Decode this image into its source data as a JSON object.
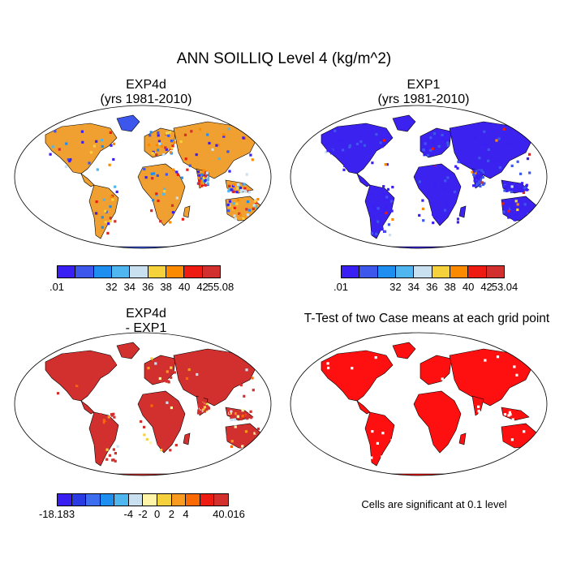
{
  "title": "ANN SOILLIQ Level 4 (kg/m^2)",
  "panels": [
    {
      "id": "p1",
      "title_line1": "EXP4d",
      "title_line2": "(yrs 1981-2010)",
      "fill": "exp4d",
      "ocean": "#ffffff"
    },
    {
      "id": "p2",
      "title_line1": "EXP1",
      "title_line2": "(yrs 1981-2010)",
      "fill": "exp1",
      "ocean": "#ffffff"
    },
    {
      "id": "p3",
      "title_line1": "EXP4d",
      "title_line2": "- EXP1",
      "fill": "diff",
      "ocean": "#ffffff"
    },
    {
      "id": "p4",
      "title_line1": "T-Test of two Case means at each grid point",
      "title_line2": "",
      "fill": "ttest",
      "ocean": "#ffffff"
    }
  ],
  "colorbars": [
    {
      "id": "cb1",
      "colors": [
        "#3a1ff5",
        "#3d57ec",
        "#1e8ff0",
        "#4fb6ef",
        "#c8e0f0",
        "#f5d23c",
        "#fb8a00",
        "#ee1b12",
        "#d2302e"
      ],
      "labels": [
        ".01",
        "32",
        "34",
        "36",
        "38",
        "40",
        "42",
        "55.08"
      ]
    },
    {
      "id": "cb2",
      "colors": [
        "#3a1ff5",
        "#3d57ec",
        "#1e8ff0",
        "#4fb6ef",
        "#c8e0f0",
        "#f5d23c",
        "#fb8a00",
        "#ee1b12",
        "#d2302e"
      ],
      "labels": [
        ".01",
        "32",
        "34",
        "36",
        "38",
        "40",
        "42",
        "53.04"
      ]
    },
    {
      "id": "cb3",
      "colors": [
        "#3a1ff5",
        "#2a3be4",
        "#3d6ef0",
        "#1e8ff0",
        "#4fb6ef",
        "#c8e0f0",
        "#fff4a8",
        "#f5d23c",
        "#fb9a1e",
        "#fb6a00",
        "#ee1b12",
        "#d2302e"
      ],
      "labels": [
        "-18.183",
        "-4",
        "-2",
        "0",
        "2",
        "4",
        "40.016"
      ]
    }
  ],
  "note": "Cells are significant at 0.1 level",
  "colors": {
    "map_outline": "#000000",
    "exp4d_base": "#f0a030",
    "exp1_base": "#3c22ee",
    "diff_base": "#d2302e",
    "ttest_base": "#ff1010"
  }
}
